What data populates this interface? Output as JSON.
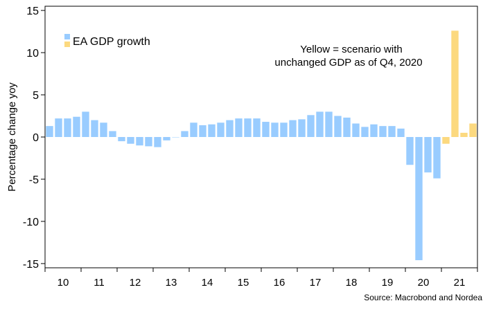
{
  "chart_data": {
    "type": "bar",
    "title": "",
    "xlabel": "",
    "ylabel": "Percentage change yoy",
    "ylim": [
      -15.5,
      15.5
    ],
    "yticks": [
      15,
      10,
      5,
      0,
      -5,
      -10,
      -15
    ],
    "year_labels": [
      "10",
      "11",
      "12",
      "13",
      "14",
      "15",
      "16",
      "17",
      "18",
      "19",
      "20",
      "21"
    ],
    "legend": {
      "label": "EA GDP growth",
      "position": "top-left"
    },
    "annotation": {
      "line1": "Yellow = scenario with",
      "line2": "unchanged GDP as of Q4, 2020"
    },
    "source": "Source: Macrobond and Nordea",
    "colors": {
      "actual": "#99ccff",
      "scenario": "#fcd97f"
    },
    "grid": false,
    "series": [
      {
        "name": "EA GDP growth",
        "color": "#99ccff",
        "quarters": [
          "2010Q1",
          "2010Q2",
          "2010Q3",
          "2010Q4",
          "2011Q1",
          "2011Q2",
          "2011Q3",
          "2011Q4",
          "2012Q1",
          "2012Q2",
          "2012Q3",
          "2012Q4",
          "2013Q1",
          "2013Q2",
          "2013Q3",
          "2013Q4",
          "2014Q1",
          "2014Q2",
          "2014Q3",
          "2014Q4",
          "2015Q1",
          "2015Q2",
          "2015Q3",
          "2015Q4",
          "2016Q1",
          "2016Q2",
          "2016Q3",
          "2016Q4",
          "2017Q1",
          "2017Q2",
          "2017Q3",
          "2017Q4",
          "2018Q1",
          "2018Q2",
          "2018Q3",
          "2018Q4",
          "2019Q1",
          "2019Q2",
          "2019Q3",
          "2019Q4",
          "2020Q1",
          "2020Q2",
          "2020Q3",
          "2020Q4"
        ],
        "values": [
          1.3,
          2.2,
          2.2,
          2.4,
          3.0,
          2.0,
          1.7,
          0.7,
          -0.5,
          -0.8,
          -1.0,
          -1.1,
          -1.2,
          -0.4,
          0.0,
          0.7,
          1.7,
          1.4,
          1.5,
          1.7,
          2.0,
          2.2,
          2.2,
          2.2,
          1.8,
          1.7,
          1.7,
          2.0,
          2.1,
          2.6,
          3.0,
          3.0,
          2.5,
          2.3,
          1.6,
          1.2,
          1.5,
          1.3,
          1.3,
          1.0,
          -3.3,
          -14.6,
          -4.2,
          -4.9
        ]
      },
      {
        "name": "Scenario",
        "color": "#fcd97f",
        "quarters": [
          "2021Q1",
          "2021Q2",
          "2021Q3",
          "2021Q4"
        ],
        "values": [
          -0.8,
          12.6,
          0.5,
          1.6
        ]
      }
    ]
  }
}
